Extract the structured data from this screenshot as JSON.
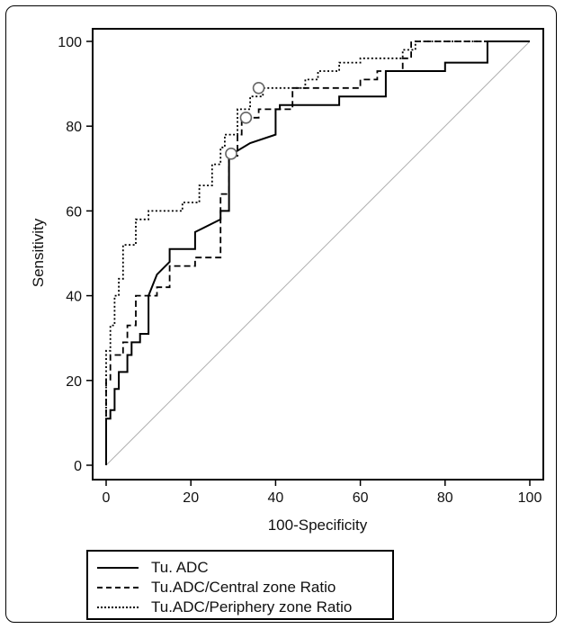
{
  "chart_data": {
    "type": "line",
    "xlabel": "100-Specificity",
    "ylabel": "Sensitivity",
    "xlim": [
      0,
      100
    ],
    "ylim": [
      0,
      100
    ],
    "xticks": [
      0,
      20,
      40,
      60,
      80,
      100
    ],
    "yticks": [
      0,
      20,
      40,
      60,
      80,
      100
    ],
    "grid": false,
    "legend_position": "bottom",
    "reference_line": {
      "x": [
        0,
        100
      ],
      "y": [
        0,
        100
      ],
      "color": "#b0b0b0"
    },
    "series": [
      {
        "name": "Tu. ADC",
        "line_style": "solid",
        "x": [
          0,
          0,
          1,
          1,
          2,
          2,
          3,
          3,
          5,
          5,
          6,
          6,
          8,
          8,
          10,
          10,
          12,
          15,
          15,
          21,
          21,
          27,
          27,
          29,
          29,
          34,
          40,
          40,
          41,
          41,
          50,
          55,
          55,
          66,
          66,
          72,
          80,
          80,
          90,
          90,
          100
        ],
        "y": [
          0,
          11,
          11,
          13,
          13,
          18,
          18,
          22,
          22,
          26,
          26,
          29,
          29,
          31,
          31,
          40,
          45,
          48,
          51,
          51,
          55,
          58,
          60,
          60,
          73,
          76,
          78,
          84,
          84,
          85,
          85,
          85,
          87,
          87,
          93,
          93,
          93,
          95,
          95,
          100,
          100
        ],
        "color": "#000000"
      },
      {
        "name": "Tu.ADC/Central zone Ratio",
        "line_style": "dashed",
        "x": [
          0,
          0,
          1,
          1,
          4,
          4,
          5,
          5,
          7,
          7,
          12,
          12,
          15,
          15,
          21,
          21,
          27,
          27,
          29,
          29,
          31,
          31,
          32,
          32,
          36,
          36,
          44,
          44,
          60,
          60,
          64,
          64,
          70,
          70,
          72,
          72,
          100
        ],
        "y": [
          0,
          20,
          20,
          26,
          26,
          29,
          29,
          33,
          33,
          40,
          40,
          42,
          42,
          47,
          47,
          49,
          49,
          64,
          64,
          73,
          73,
          78,
          78,
          82,
          82,
          84,
          84,
          89,
          89,
          91,
          91,
          93,
          93,
          96,
          96,
          100,
          100
        ],
        "color": "#000000"
      },
      {
        "name": "Tu.ADC/Periphery zone Ratio",
        "line_style": "dotted",
        "x": [
          0,
          0,
          1,
          1,
          2,
          2,
          3,
          3,
          4,
          4,
          7,
          7,
          10,
          10,
          18,
          18,
          22,
          22,
          25,
          25,
          27,
          27,
          28,
          28,
          31,
          31,
          34,
          34,
          37,
          37,
          47,
          47,
          50,
          50,
          55,
          55,
          60,
          60,
          70,
          70,
          73,
          73,
          100
        ],
        "y": [
          0,
          27,
          27,
          33,
          33,
          40,
          40,
          44,
          44,
          52,
          52,
          58,
          58,
          60,
          60,
          62,
          62,
          66,
          66,
          71,
          71,
          75,
          75,
          78,
          78,
          84,
          84,
          87,
          87,
          89,
          89,
          91,
          91,
          93,
          93,
          95,
          95,
          96,
          96,
          98,
          98,
          100,
          100
        ],
        "color": "#000000"
      }
    ],
    "markers": [
      {
        "series": "Tu. ADC",
        "x": 29.5,
        "y": 73.5
      },
      {
        "series": "Tu.ADC/Central zone Ratio",
        "x": 33,
        "y": 82
      },
      {
        "series": "Tu.ADC/Periphery zone Ratio",
        "x": 36,
        "y": 89
      }
    ]
  }
}
